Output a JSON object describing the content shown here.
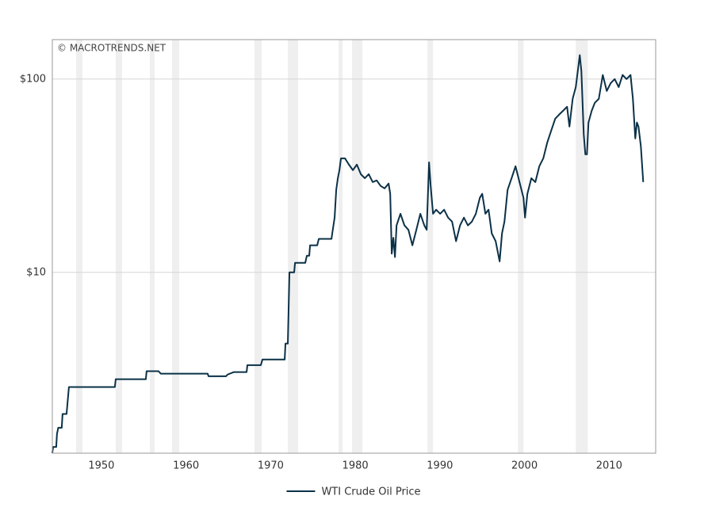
{
  "chart_data": {
    "type": "line",
    "watermark": "© MACROTRENDS.NET",
    "log_scale": true,
    "grid": true,
    "legend": "bottom",
    "xlim": [
      1944.2,
      2015.5
    ],
    "xticks": [
      1950,
      1960,
      1970,
      1980,
      1990,
      2000,
      2010
    ],
    "ylim": [
      1.16,
      160
    ],
    "yticks": [
      {
        "value": 10,
        "label": "$10"
      },
      {
        "value": 100,
        "label": "$100"
      }
    ],
    "shaded_periods": [
      [
        1947.0,
        1947.75
      ],
      [
        1951.69,
        1952.44
      ],
      [
        1955.72,
        1956.28
      ],
      [
        1958.34,
        1959.19
      ],
      [
        1968.09,
        1968.94
      ],
      [
        1972.03,
        1973.25
      ],
      [
        1978.03,
        1978.5
      ],
      [
        1979.62,
        1980.84
      ],
      [
        1988.53,
        1989.19
      ],
      [
        1999.22,
        1999.88
      ],
      [
        2006.06,
        2007.47
      ]
    ],
    "shade_color": "#efefef",
    "x": [
      1944.19,
      1944.3,
      1944.66,
      1944.75,
      1944.9,
      1945.31,
      1945.41,
      1945.88,
      1945.97,
      1946.16,
      1951.59,
      1951.69,
      1955.25,
      1955.34,
      1956.75,
      1957.03,
      1962.56,
      1962.66,
      1964.72,
      1964.91,
      1965.66,
      1967.16,
      1967.25,
      1968.84,
      1969.03,
      1971.66,
      1971.75,
      1972.03,
      1972.22,
      1972.78,
      1972.88,
      1974.09,
      1974.28,
      1974.56,
      1974.66,
      1975.5,
      1975.69,
      1977.19,
      1977.28,
      1977.56,
      1977.75,
      1977.94,
      1978.13,
      1978.31,
      1978.78,
      1979.25,
      1979.72,
      1980.19,
      1980.66,
      1981.13,
      1981.59,
      1982.06,
      1982.53,
      1983.0,
      1983.47,
      1983.94,
      1984.13,
      1984.31,
      1984.5,
      1984.69,
      1984.88,
      1985.34,
      1985.81,
      1986.28,
      1986.75,
      1987.22,
      1987.69,
      1988.16,
      1988.44,
      1988.72,
      1988.91,
      1989.19,
      1989.56,
      1990.03,
      1990.5,
      1990.97,
      1991.44,
      1991.91,
      1992.38,
      1992.84,
      1993.31,
      1993.78,
      1994.25,
      1994.72,
      1995.0,
      1995.38,
      1995.75,
      1996.13,
      1996.59,
      1997.06,
      1997.34,
      1997.63,
      1998.0,
      1998.47,
      1998.94,
      1999.41,
      1999.88,
      2000.06,
      2000.34,
      2000.81,
      2001.28,
      2001.75,
      2002.22,
      2002.69,
      2003.16,
      2003.63,
      2004.09,
      2004.56,
      2005.03,
      2005.31,
      2005.69,
      2006.06,
      2006.53,
      2006.72,
      2007.0,
      2007.19,
      2007.38,
      2007.56,
      2007.94,
      2008.31,
      2008.78,
      2009.25,
      2009.72,
      2010.19,
      2010.66,
      2011.13,
      2011.59,
      2012.06,
      2012.53,
      2012.81,
      2013.09,
      2013.28,
      2013.47,
      2013.75,
      2014.03
    ],
    "series": [
      {
        "name": "WTI Crude Oil Price",
        "color": "#0b3147",
        "values": [
          1.16,
          1.25,
          1.25,
          1.46,
          1.57,
          1.57,
          1.85,
          1.85,
          2.05,
          2.55,
          2.55,
          2.8,
          2.8,
          3.08,
          3.08,
          2.99,
          2.99,
          2.9,
          2.9,
          2.96,
          3.05,
          3.05,
          3.31,
          3.31,
          3.54,
          3.54,
          4.28,
          4.28,
          10.0,
          10.0,
          11.2,
          11.2,
          12.2,
          12.2,
          13.8,
          13.8,
          14.9,
          14.9,
          15.9,
          19.2,
          26.7,
          30.7,
          33.8,
          38.9,
          38.9,
          36.1,
          33.8,
          36.1,
          32.2,
          30.7,
          32.2,
          29.3,
          29.9,
          28.0,
          27.2,
          28.8,
          25.5,
          12.5,
          15.1,
          12.0,
          17.5,
          20.1,
          17.5,
          16.6,
          13.8,
          16.6,
          20.1,
          17.5,
          16.6,
          37.1,
          28.0,
          20.1,
          21.1,
          20.1,
          21.1,
          19.2,
          18.3,
          14.5,
          17.5,
          19.2,
          17.5,
          18.3,
          20.1,
          24.3,
          25.5,
          20.1,
          21.1,
          15.9,
          14.5,
          11.4,
          15.9,
          18.3,
          26.7,
          30.7,
          35.4,
          29.3,
          24.3,
          19.2,
          25.5,
          30.7,
          29.3,
          35.4,
          38.9,
          47.0,
          54.2,
          62.4,
          65.5,
          68.6,
          71.9,
          56.8,
          79.0,
          90.9,
          133,
          110,
          51.7,
          40.8,
          40.8,
          59.6,
          68.6,
          75.4,
          79.0,
          105,
          86.8,
          95.4,
          100,
          90.9,
          105,
          100,
          105,
          79.0,
          49.3,
          59.6,
          56.8,
          44.9,
          29.3
        ]
      }
    ]
  }
}
